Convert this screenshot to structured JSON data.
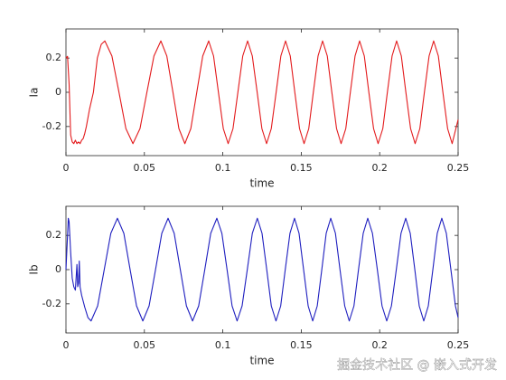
{
  "chart_data": [
    {
      "type": "line",
      "xlabel": "time",
      "ylabel": "Ia",
      "color": "#e31a1c",
      "xlim": [
        0,
        0.25
      ],
      "xticks": [
        0,
        0.05,
        0.1,
        0.15,
        0.2,
        0.25
      ],
      "ylim": [
        -0.37,
        0.37
      ],
      "yticks": [
        -0.2,
        0,
        0.2
      ],
      "x": [
        0,
        0.001,
        0.002,
        0.003,
        0.004,
        0.005,
        0.006,
        0.007,
        0.008,
        0.009,
        0.01,
        0.011,
        0.012,
        0.013,
        0.015,
        0.0175,
        0.02,
        0.0225,
        0.0248,
        0.0293,
        0.0338,
        0.0382,
        0.0427,
        0.0472,
        0.0516,
        0.0561,
        0.0605,
        0.0643,
        0.0682,
        0.072,
        0.0758,
        0.0796,
        0.0834,
        0.0872,
        0.091,
        0.0941,
        0.0972,
        0.1003,
        0.1034,
        0.1065,
        0.1096,
        0.1127,
        0.1158,
        0.1188,
        0.1219,
        0.1249,
        0.1279,
        0.1309,
        0.134,
        0.137,
        0.14,
        0.143,
        0.1459,
        0.1489,
        0.1518,
        0.1548,
        0.1577,
        0.1607,
        0.1636,
        0.1666,
        0.1695,
        0.1725,
        0.1754,
        0.1784,
        0.1813,
        0.1843,
        0.1872,
        0.1902,
        0.1931,
        0.1961,
        0.199,
        0.202,
        0.2049,
        0.2079,
        0.2108,
        0.2138,
        0.2167,
        0.2197,
        0.2226,
        0.2256,
        0.2285,
        0.2315,
        0.2344,
        0.2374,
        0.2403,
        0.2433,
        0.2462,
        0.25
      ],
      "values": [
        0.2,
        0.21,
        0.05,
        -0.25,
        -0.29,
        -0.3,
        -0.28,
        -0.3,
        -0.29,
        -0.3,
        -0.28,
        -0.27,
        -0.24,
        -0.2,
        -0.1,
        0,
        0.2,
        0.28,
        0.3,
        0.212,
        0,
        -0.212,
        -0.3,
        -0.212,
        0,
        0.212,
        0.3,
        0.212,
        0,
        -0.212,
        -0.3,
        -0.212,
        0,
        0.212,
        0.3,
        0.212,
        0,
        -0.212,
        -0.3,
        -0.212,
        0,
        0.212,
        0.3,
        0.212,
        0,
        -0.212,
        -0.3,
        -0.212,
        0,
        0.212,
        0.3,
        0.212,
        0,
        -0.212,
        -0.3,
        -0.212,
        0,
        0.212,
        0.3,
        0.212,
        0,
        -0.212,
        -0.3,
        -0.212,
        0,
        0.212,
        0.3,
        0.212,
        0,
        -0.212,
        -0.3,
        -0.212,
        0,
        0.212,
        0.3,
        0.212,
        0,
        -0.212,
        -0.3,
        -0.212,
        0,
        0.212,
        0.3,
        0.212,
        0,
        -0.212,
        -0.3,
        -0.16
      ]
    },
    {
      "type": "line",
      "xlabel": "time",
      "ylabel": "Ib",
      "color": "#1f1fbf",
      "xlim": [
        0,
        0.25
      ],
      "xticks": [
        0,
        0.05,
        0.1,
        0.15,
        0.2,
        0.25
      ],
      "ylim": [
        -0.37,
        0.37
      ],
      "yticks": [
        -0.2,
        0,
        0.2
      ],
      "x": [
        0,
        0.001,
        0.0015,
        0.002,
        0.003,
        0.004,
        0.005,
        0.006,
        0.007,
        0.0075,
        0.008,
        0.0085,
        0.009,
        0.01,
        0.012,
        0.014,
        0.016,
        0.0202,
        0.0244,
        0.0286,
        0.0328,
        0.0369,
        0.0409,
        0.045,
        0.049,
        0.053,
        0.0571,
        0.0611,
        0.0651,
        0.069,
        0.0729,
        0.0768,
        0.0807,
        0.0846,
        0.0885,
        0.0923,
        0.0962,
        0.0994,
        0.1027,
        0.1059,
        0.1091,
        0.1123,
        0.1156,
        0.1188,
        0.122,
        0.125,
        0.128,
        0.1309,
        0.1339,
        0.1369,
        0.1398,
        0.1428,
        0.1457,
        0.1486,
        0.1515,
        0.1544,
        0.1573,
        0.1602,
        0.1631,
        0.1659,
        0.1688,
        0.1718,
        0.1747,
        0.1777,
        0.1806,
        0.1836,
        0.1865,
        0.1895,
        0.1924,
        0.1954,
        0.1985,
        0.2015,
        0.2045,
        0.2075,
        0.2106,
        0.2136,
        0.2166,
        0.2195,
        0.2224,
        0.2252,
        0.2281,
        0.231,
        0.2339,
        0.2367,
        0.2396,
        0.2425,
        0.2454,
        0.2483,
        0.25
      ],
      "values": [
        0,
        0.2,
        0.3,
        0.28,
        0.1,
        -0.05,
        -0.1,
        -0.12,
        0.03,
        -0.1,
        -0.08,
        0.05,
        -0.1,
        -0.15,
        -0.22,
        -0.28,
        -0.3,
        -0.212,
        0,
        0.212,
        0.3,
        0.212,
        0,
        -0.212,
        -0.3,
        -0.212,
        0,
        0.212,
        0.3,
        0.212,
        0,
        -0.212,
        -0.3,
        -0.212,
        0,
        0.212,
        0.3,
        0.212,
        0,
        -0.212,
        -0.3,
        -0.212,
        0,
        0.212,
        0.3,
        0.212,
        0,
        -0.212,
        -0.3,
        -0.212,
        0,
        0.212,
        0.3,
        0.212,
        0,
        -0.212,
        -0.3,
        -0.212,
        0,
        0.212,
        0.3,
        0.212,
        0,
        -0.212,
        -0.3,
        -0.212,
        0,
        0.212,
        0.3,
        0.212,
        0,
        -0.212,
        -0.3,
        -0.212,
        0,
        0.212,
        0.3,
        0.212,
        0,
        -0.212,
        -0.3,
        -0.212,
        0,
        0.212,
        0.3,
        0.212,
        0,
        -0.212,
        -0.28
      ]
    }
  ],
  "watermark": "掘金技术社区 @ 嵌入式开发"
}
